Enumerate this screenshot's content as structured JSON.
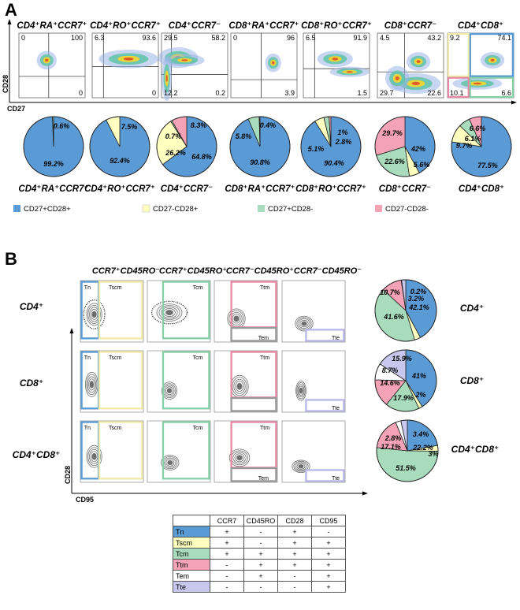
{
  "panel_a": {
    "letter": "A",
    "x_axis_label": "CD27",
    "y_axis_label": "CD28",
    "plots": [
      {
        "title": "CD4⁺RA⁺CCR7⁺",
        "q_ul": "0",
        "q_ur": "100",
        "q_ll": "",
        "q_lr": "0"
      },
      {
        "title": "CD4⁺RO⁺CCR7⁺",
        "q_ul": "6.3",
        "q_ur": "93.6",
        "q_ll": "",
        "q_lr": "0"
      },
      {
        "title": "CD4⁺CCR7⁻",
        "q_ul": "29.5",
        "q_ur": "58.2",
        "q_ll": "12.2",
        "q_lr": "0.2"
      },
      {
        "title": "CD8⁺RA⁺CCR7⁺",
        "q_ul": "0",
        "q_ur": "96",
        "q_ll": "",
        "q_lr": "3.9"
      },
      {
        "title": "CD8⁺RO⁺CCR7⁺",
        "q_ul": "6.5",
        "q_ur": "91.9",
        "q_ll": "",
        "q_lr": "1.5"
      },
      {
        "title": "CD8⁺CCR7⁻",
        "q_ul": "4.5",
        "q_ur": "43.2",
        "q_ll": "29.7",
        "q_lr": "22.6"
      },
      {
        "title": "CD4⁺CD8⁺",
        "q_ul": "9.2",
        "q_ur": "74.1",
        "q_ll": "10.1",
        "q_lr": "6.6"
      }
    ],
    "pies": [
      {
        "label": "CD4⁺RA⁺CCR7⁺",
        "values": [
          99.2,
          0,
          0.6,
          0
        ],
        "texts": [
          "99.2%",
          "",
          "0.6%",
          ""
        ]
      },
      {
        "label": "CD4⁺RO⁺CCR7⁺",
        "values": [
          92.4,
          7.5,
          0,
          0
        ],
        "texts": [
          "92.4%",
          "7.5%",
          "",
          ""
        ]
      },
      {
        "label": "CD4⁺CCR7⁻",
        "values": [
          64.8,
          26.2,
          0.7,
          8.3
        ],
        "texts": [
          "64.8%",
          "26.2%",
          "0.7%",
          "8.3%"
        ]
      },
      {
        "label": "CD8⁺RA⁺CCR7⁺",
        "values": [
          90.8,
          0,
          5.8,
          0.4
        ],
        "texts": [
          "90.8%",
          "",
          "5.8%",
          "0.4%"
        ]
      },
      {
        "label": "CD8⁺RO⁺CCR7⁺",
        "values": [
          90.4,
          5.1,
          2.8,
          1
        ],
        "texts": [
          "90.4%",
          "5.1%",
          "2.8%",
          "1%"
        ]
      },
      {
        "label": "CD8⁺CCR7⁻",
        "values": [
          42,
          5.6,
          22.6,
          29.7
        ],
        "texts": [
          "42%",
          "5.6%",
          "22.6%",
          "29.7%"
        ]
      },
      {
        "label": "CD4⁺CD8⁺",
        "values": [
          77.5,
          9.7,
          6.1,
          6.6
        ],
        "texts": [
          "77.5%",
          "9.7%",
          "6.1%",
          "6.6%"
        ]
      }
    ],
    "legend": [
      "CD27+CD28+",
      "CD27-CD28+",
      "CD27+CD28-",
      "CD27-CD28-"
    ]
  },
  "panel_b": {
    "letter": "B",
    "x_axis_label": "CD95",
    "y_axis_label": "CD28",
    "column_titles": [
      "CCR7⁺CD45RO⁻",
      "CCR7⁺CD45RO⁺",
      "CCR7⁻CD45RO⁺",
      "CCR7⁻CD45RO⁻"
    ],
    "rows": [
      {
        "label": "CD4⁺",
        "gates": [
          [
            "Tn",
            "Tscm"
          ],
          [
            "Tcm"
          ],
          [
            "Ttm",
            "Tem"
          ],
          [
            "Tte"
          ]
        ],
        "pie_label": "CD4⁺",
        "pie_values": [
          42.1,
          3.2,
          41.6,
          10.7,
          0.2,
          2.2
        ],
        "pie_texts": [
          "42.1%",
          "3.2%",
          "41.6%",
          "10.7%",
          "0.2%",
          ""
        ]
      },
      {
        "label": "CD8⁺",
        "gates": [
          [
            "Tn",
            "Tscm"
          ],
          [
            "Tcm"
          ],
          [
            "Ttm",
            ""
          ],
          [
            "Tte"
          ]
        ],
        "pie_label": "CD8⁺",
        "pie_values": [
          41,
          2,
          17.9,
          14.6,
          8.7,
          15.9
        ],
        "pie_texts": [
          "41%",
          "2%",
          "17.9%",
          "14.6%",
          "8.7%",
          "15.9%"
        ]
      },
      {
        "label": "CD4⁺CD8⁺",
        "gates": [
          [
            "Tn",
            "Tscm"
          ],
          [
            "Tcm"
          ],
          [
            "Ttm",
            "Tem"
          ],
          [
            "Tte"
          ]
        ],
        "pie_label": "CD4⁺CD8⁺",
        "pie_values": [
          22.2,
          3,
          51.5,
          17.1,
          2.8,
          3.4
        ],
        "pie_texts": [
          "22.2%",
          "3%",
          "51.5%",
          "17.1%",
          "2.8%",
          "3.4%"
        ]
      }
    ],
    "table": {
      "headers": [
        "CCR7",
        "CD45RO",
        "CD28",
        "CD95"
      ],
      "rows": [
        {
          "subset": "Tn",
          "color": "#5b9bd5",
          "cells": [
            "+",
            "-",
            "+",
            "-"
          ]
        },
        {
          "subset": "Tscm",
          "color": "#ffffc0",
          "cells": [
            "+",
            "-",
            "+",
            "+"
          ]
        },
        {
          "subset": "Tcm",
          "color": "#a8dcbc",
          "cells": [
            "+",
            "+",
            "+",
            "+"
          ]
        },
        {
          "subset": "Ttm",
          "color": "#f4a3b6",
          "cells": [
            "-",
            "+",
            "+",
            "+"
          ]
        },
        {
          "subset": "Tem",
          "color": "#ffffff",
          "cells": [
            "-",
            "+",
            "-",
            "+"
          ]
        },
        {
          "subset": "Tte",
          "color": "#c8c8ee",
          "cells": [
            "-",
            "-",
            "-",
            "+"
          ]
        }
      ]
    }
  },
  "colors": {
    "blue": "#5b9bd5",
    "yellow": "#ffffc0",
    "green": "#a8dcbc",
    "pink": "#f4a3b6",
    "lavender": "#c8c8ee",
    "white": "#ffffff",
    "gate_blue": "#5b9bd5",
    "gate_yellow": "#f2eaa8",
    "gate_green": "#86d0a8",
    "gate_pink": "#e989a5",
    "gate_gray": "#999999",
    "gate_lavender": "#b9b6e8"
  }
}
